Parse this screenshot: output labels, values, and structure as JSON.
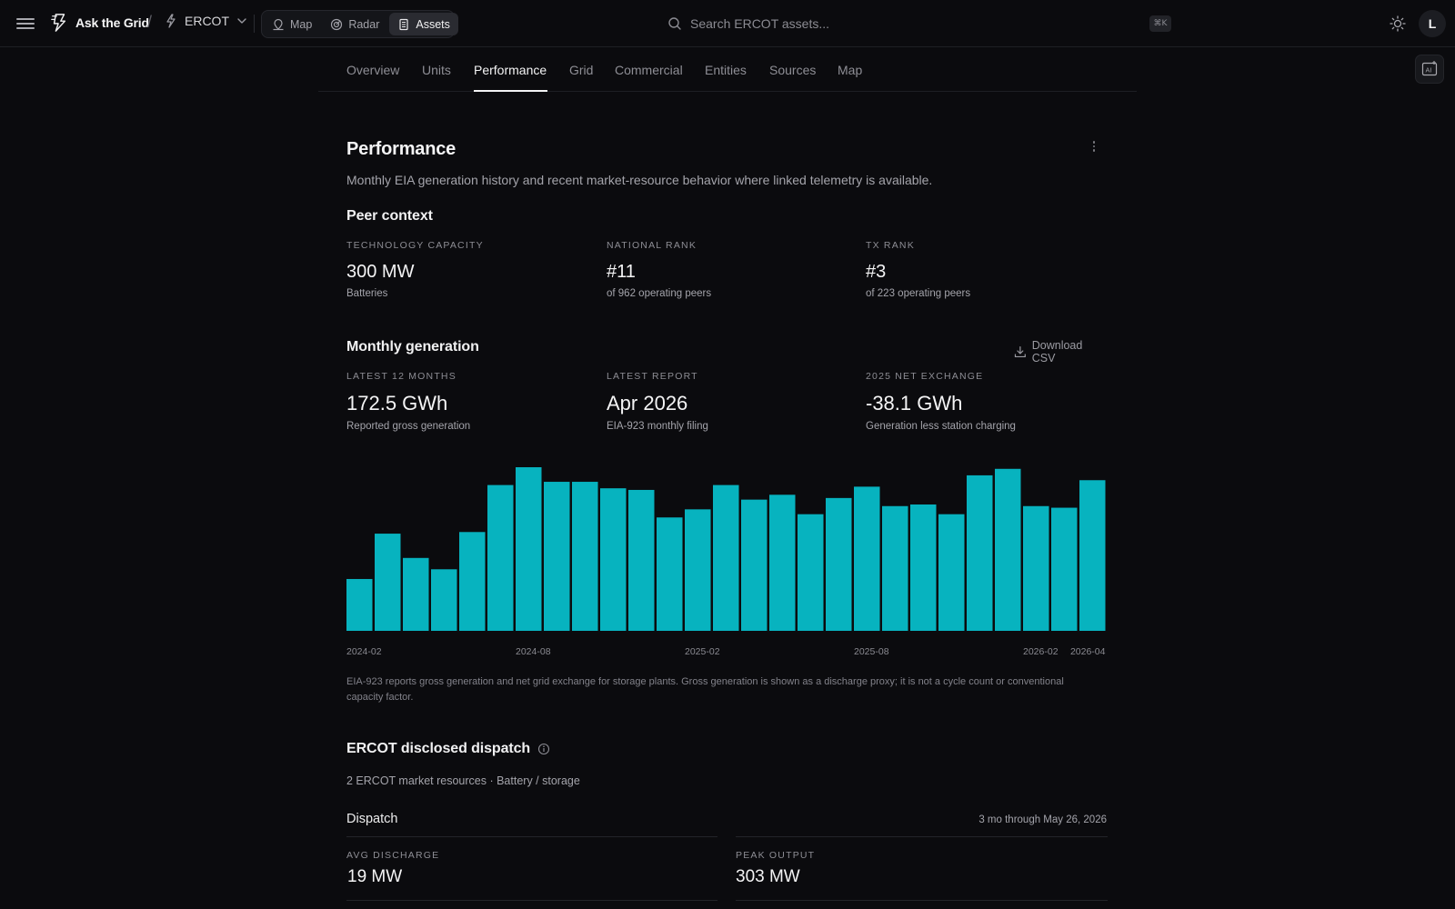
{
  "app": {
    "name": "Ask the Grid",
    "market": "ERCOT",
    "nav": [
      {
        "label": "Map",
        "icon": "map-pin-icon"
      },
      {
        "label": "Radar",
        "icon": "radar-icon"
      },
      {
        "label": "Assets",
        "icon": "assets-icon",
        "active": true
      }
    ],
    "search_placeholder": "Search ERCOT assets...",
    "shortcut": "⌘K",
    "avatar_initial": "L"
  },
  "tabs": [
    {
      "label": "Overview"
    },
    {
      "label": "Units"
    },
    {
      "label": "Performance",
      "active": true
    },
    {
      "label": "Grid"
    },
    {
      "label": "Commercial"
    },
    {
      "label": "Entities"
    },
    {
      "label": "Sources"
    },
    {
      "label": "Map"
    }
  ],
  "performance": {
    "title": "Performance",
    "description": "Monthly EIA generation history and recent market-resource behavior where linked telemetry is available."
  },
  "peer_context": {
    "title": "Peer context",
    "stats": [
      {
        "label": "TECHNOLOGY CAPACITY",
        "value": "300 MW",
        "sub": "Batteries"
      },
      {
        "label": "NATIONAL RANK",
        "value": "#11",
        "sub": "of 962 operating peers"
      },
      {
        "label": "TX RANK",
        "value": "#3",
        "sub": "of 223 operating peers"
      }
    ]
  },
  "monthly": {
    "title": "Monthly generation",
    "download_label": "Download CSV",
    "stats": [
      {
        "label": "LATEST 12 MONTHS",
        "value": "172.5 GWh",
        "sub": "Reported gross generation"
      },
      {
        "label": "LATEST REPORT",
        "value": "Apr 2026",
        "sub": "EIA-923 monthly filing"
      },
      {
        "label": "2025 NET EXCHANGE",
        "value": "-38.1 GWh",
        "sub": "Generation less station charging"
      }
    ],
    "note": "EIA-923 reports gross generation and net grid exchange for storage plants. Gross generation is shown as a discharge proxy; it is not a cycle count or conventional capacity factor."
  },
  "chart_data": {
    "type": "bar",
    "categories": [
      "2024-02",
      "2024-03",
      "2024-04",
      "2024-05",
      "2024-06",
      "2024-07",
      "2024-08",
      "2024-09",
      "2024-10",
      "2024-11",
      "2024-12",
      "2025-01",
      "2025-02",
      "2025-03",
      "2025-04",
      "2025-05",
      "2025-06",
      "2025-07",
      "2025-08",
      "2025-09",
      "2025-10",
      "2025-11",
      "2025-12",
      "2026-01",
      "2026-02",
      "2026-03",
      "2026-04"
    ],
    "values": [
      32,
      60,
      45,
      38,
      61,
      90,
      101,
      92,
      92,
      88,
      87,
      70,
      75,
      90,
      81,
      84,
      72,
      82,
      89,
      77,
      78,
      72,
      96,
      100,
      77,
      76,
      93
    ],
    "tick_labels": [
      {
        "category": "2024-02",
        "label": "2024-02"
      },
      {
        "category": "2024-08",
        "label": "2024-08"
      },
      {
        "category": "2025-02",
        "label": "2025-02"
      },
      {
        "category": "2025-08",
        "label": "2025-08"
      },
      {
        "category": "2026-02",
        "label": "2026-02"
      },
      {
        "category": "2026-04",
        "label": "2026-04"
      }
    ],
    "color": "#07b3bf",
    "grid": false
  },
  "dispatch_section": {
    "title": "ERCOT disclosed dispatch",
    "info_icon": "info-icon",
    "subtitle": "2 ERCOT market resources · Battery / storage",
    "card_title": "Dispatch",
    "period": "3 mo through May 26, 2026",
    "stats": [
      {
        "label": "AVG DISCHARGE",
        "value": "19 MW"
      },
      {
        "label": "PEAK OUTPUT",
        "value": "303 MW"
      }
    ]
  }
}
